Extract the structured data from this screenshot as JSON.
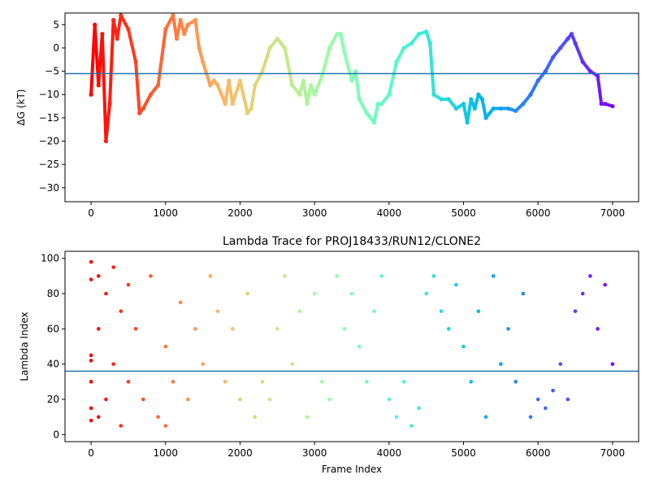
{
  "chart_data": [
    {
      "type": "scatter",
      "title": "",
      "xlabel": "",
      "ylabel": "ΔG (kT)",
      "xlim": [
        -350,
        7350
      ],
      "ylim": [
        -33,
        7.5
      ],
      "xticks": [
        0,
        1000,
        2000,
        3000,
        4000,
        5000,
        6000,
        7000
      ],
      "yticks": [
        5,
        0,
        -5,
        -10,
        -15,
        -20,
        -25,
        -30
      ],
      "hline": -5.5,
      "colormap": "rainbow (red at frame 0 to violet at frame 7000)",
      "hline_color": "#1f77b4",
      "series": [
        {
          "x": [
            0,
            50,
            100,
            150,
            200,
            250,
            300,
            350,
            400,
            500,
            600,
            650,
            700,
            800,
            900,
            1000,
            1100,
            1150,
            1200,
            1250,
            1300,
            1400,
            1450,
            1500,
            1600,
            1650,
            1700,
            1800,
            1850,
            1900,
            2000,
            2100,
            2150,
            2200,
            2300,
            2400,
            2500,
            2600,
            2700,
            2800,
            2850,
            2900,
            2950,
            3000,
            3100,
            3200,
            3300,
            3350,
            3400,
            3500,
            3550,
            3600,
            3700,
            3800,
            3850,
            3900,
            4000,
            4100,
            4200,
            4300,
            4400,
            4500,
            4550,
            4600,
            4700,
            4800,
            4900,
            5000,
            5050,
            5100,
            5150,
            5200,
            5250,
            5300,
            5400,
            5500,
            5600,
            5700,
            5800,
            5900,
            6000,
            6100,
            6200,
            6300,
            6400,
            6450,
            6500,
            6600,
            6700,
            6800,
            6850,
            6900,
            7000
          ],
          "y": [
            -10,
            5,
            -8,
            3,
            -20,
            -12,
            6,
            2,
            7,
            4,
            -3,
            -14,
            -13,
            -10,
            -8,
            4,
            7,
            2,
            6,
            3,
            5,
            6,
            0,
            -3,
            -8,
            -7,
            -8,
            -12,
            -7,
            -12,
            -7,
            -14,
            -13,
            -8,
            -5,
            0,
            2,
            0,
            -8,
            -10,
            -7,
            -12,
            -8,
            -10,
            -6,
            0,
            3,
            3,
            -1,
            -7,
            -5,
            -11,
            -14,
            -16,
            -12,
            -12,
            -10,
            -3,
            0,
            1,
            3,
            3.5,
            1,
            -10,
            -11,
            -11,
            -13,
            -12,
            -16,
            -11,
            -13,
            -10,
            -11,
            -15,
            -13,
            -13,
            -13,
            -13.5,
            -12,
            -10,
            -7,
            -5,
            -2,
            0,
            2,
            3,
            1,
            -3,
            -5,
            -6,
            -12,
            -12,
            -12.5
          ]
        }
      ]
    },
    {
      "type": "scatter",
      "title": "Lambda Trace for PROJ18433/RUN12/CLONE2",
      "xlabel": "Frame Index",
      "ylabel": "Lambda Index",
      "xlim": [
        -350,
        7350
      ],
      "ylim": [
        -4,
        104
      ],
      "xticks": [
        0,
        1000,
        2000,
        3000,
        4000,
        5000,
        6000,
        7000
      ],
      "yticks": [
        0,
        20,
        40,
        60,
        80,
        100
      ],
      "hline": 36,
      "colormap": "rainbow (red at frame 0 to violet at frame 7000)",
      "hline_color": "#1f77b4",
      "series": [
        {
          "x": [
            0,
            0,
            0,
            0,
            0,
            0,
            0,
            100,
            100,
            100,
            200,
            200,
            300,
            300,
            400,
            400,
            500,
            500,
            600,
            700,
            800,
            900,
            1000,
            1000,
            1100,
            1200,
            1300,
            1400,
            1500,
            1600,
            1700,
            1800,
            1900,
            2000,
            2100,
            2200,
            2300,
            2400,
            2500,
            2600,
            2700,
            2800,
            2900,
            3000,
            3100,
            3200,
            3300,
            3400,
            3500,
            3600,
            3700,
            3800,
            3900,
            4000,
            4100,
            4200,
            4300,
            4400,
            4500,
            4600,
            4700,
            4800,
            4900,
            5000,
            5100,
            5200,
            5300,
            5400,
            5500,
            5600,
            5700,
            5800,
            5900,
            6000,
            6100,
            6200,
            6300,
            6400,
            6500,
            6600,
            6700,
            6800,
            6900,
            7000
          ],
          "y": [
            98,
            88,
            45,
            30,
            15,
            8,
            42,
            90,
            60,
            10,
            80,
            20,
            95,
            40,
            70,
            5,
            85,
            30,
            60,
            20,
            90,
            10,
            50,
            5,
            30,
            75,
            20,
            60,
            40,
            90,
            70,
            30,
            60,
            20,
            80,
            10,
            30,
            20,
            60,
            90,
            40,
            70,
            10,
            80,
            30,
            20,
            90,
            60,
            80,
            50,
            30,
            70,
            90,
            20,
            10,
            30,
            5,
            15,
            80,
            90,
            70,
            60,
            85,
            50,
            30,
            70,
            10,
            90,
            40,
            60,
            30,
            80,
            10,
            20,
            15,
            25,
            40,
            20,
            70,
            80,
            90,
            60,
            85,
            40
          ]
        }
      ]
    }
  ]
}
